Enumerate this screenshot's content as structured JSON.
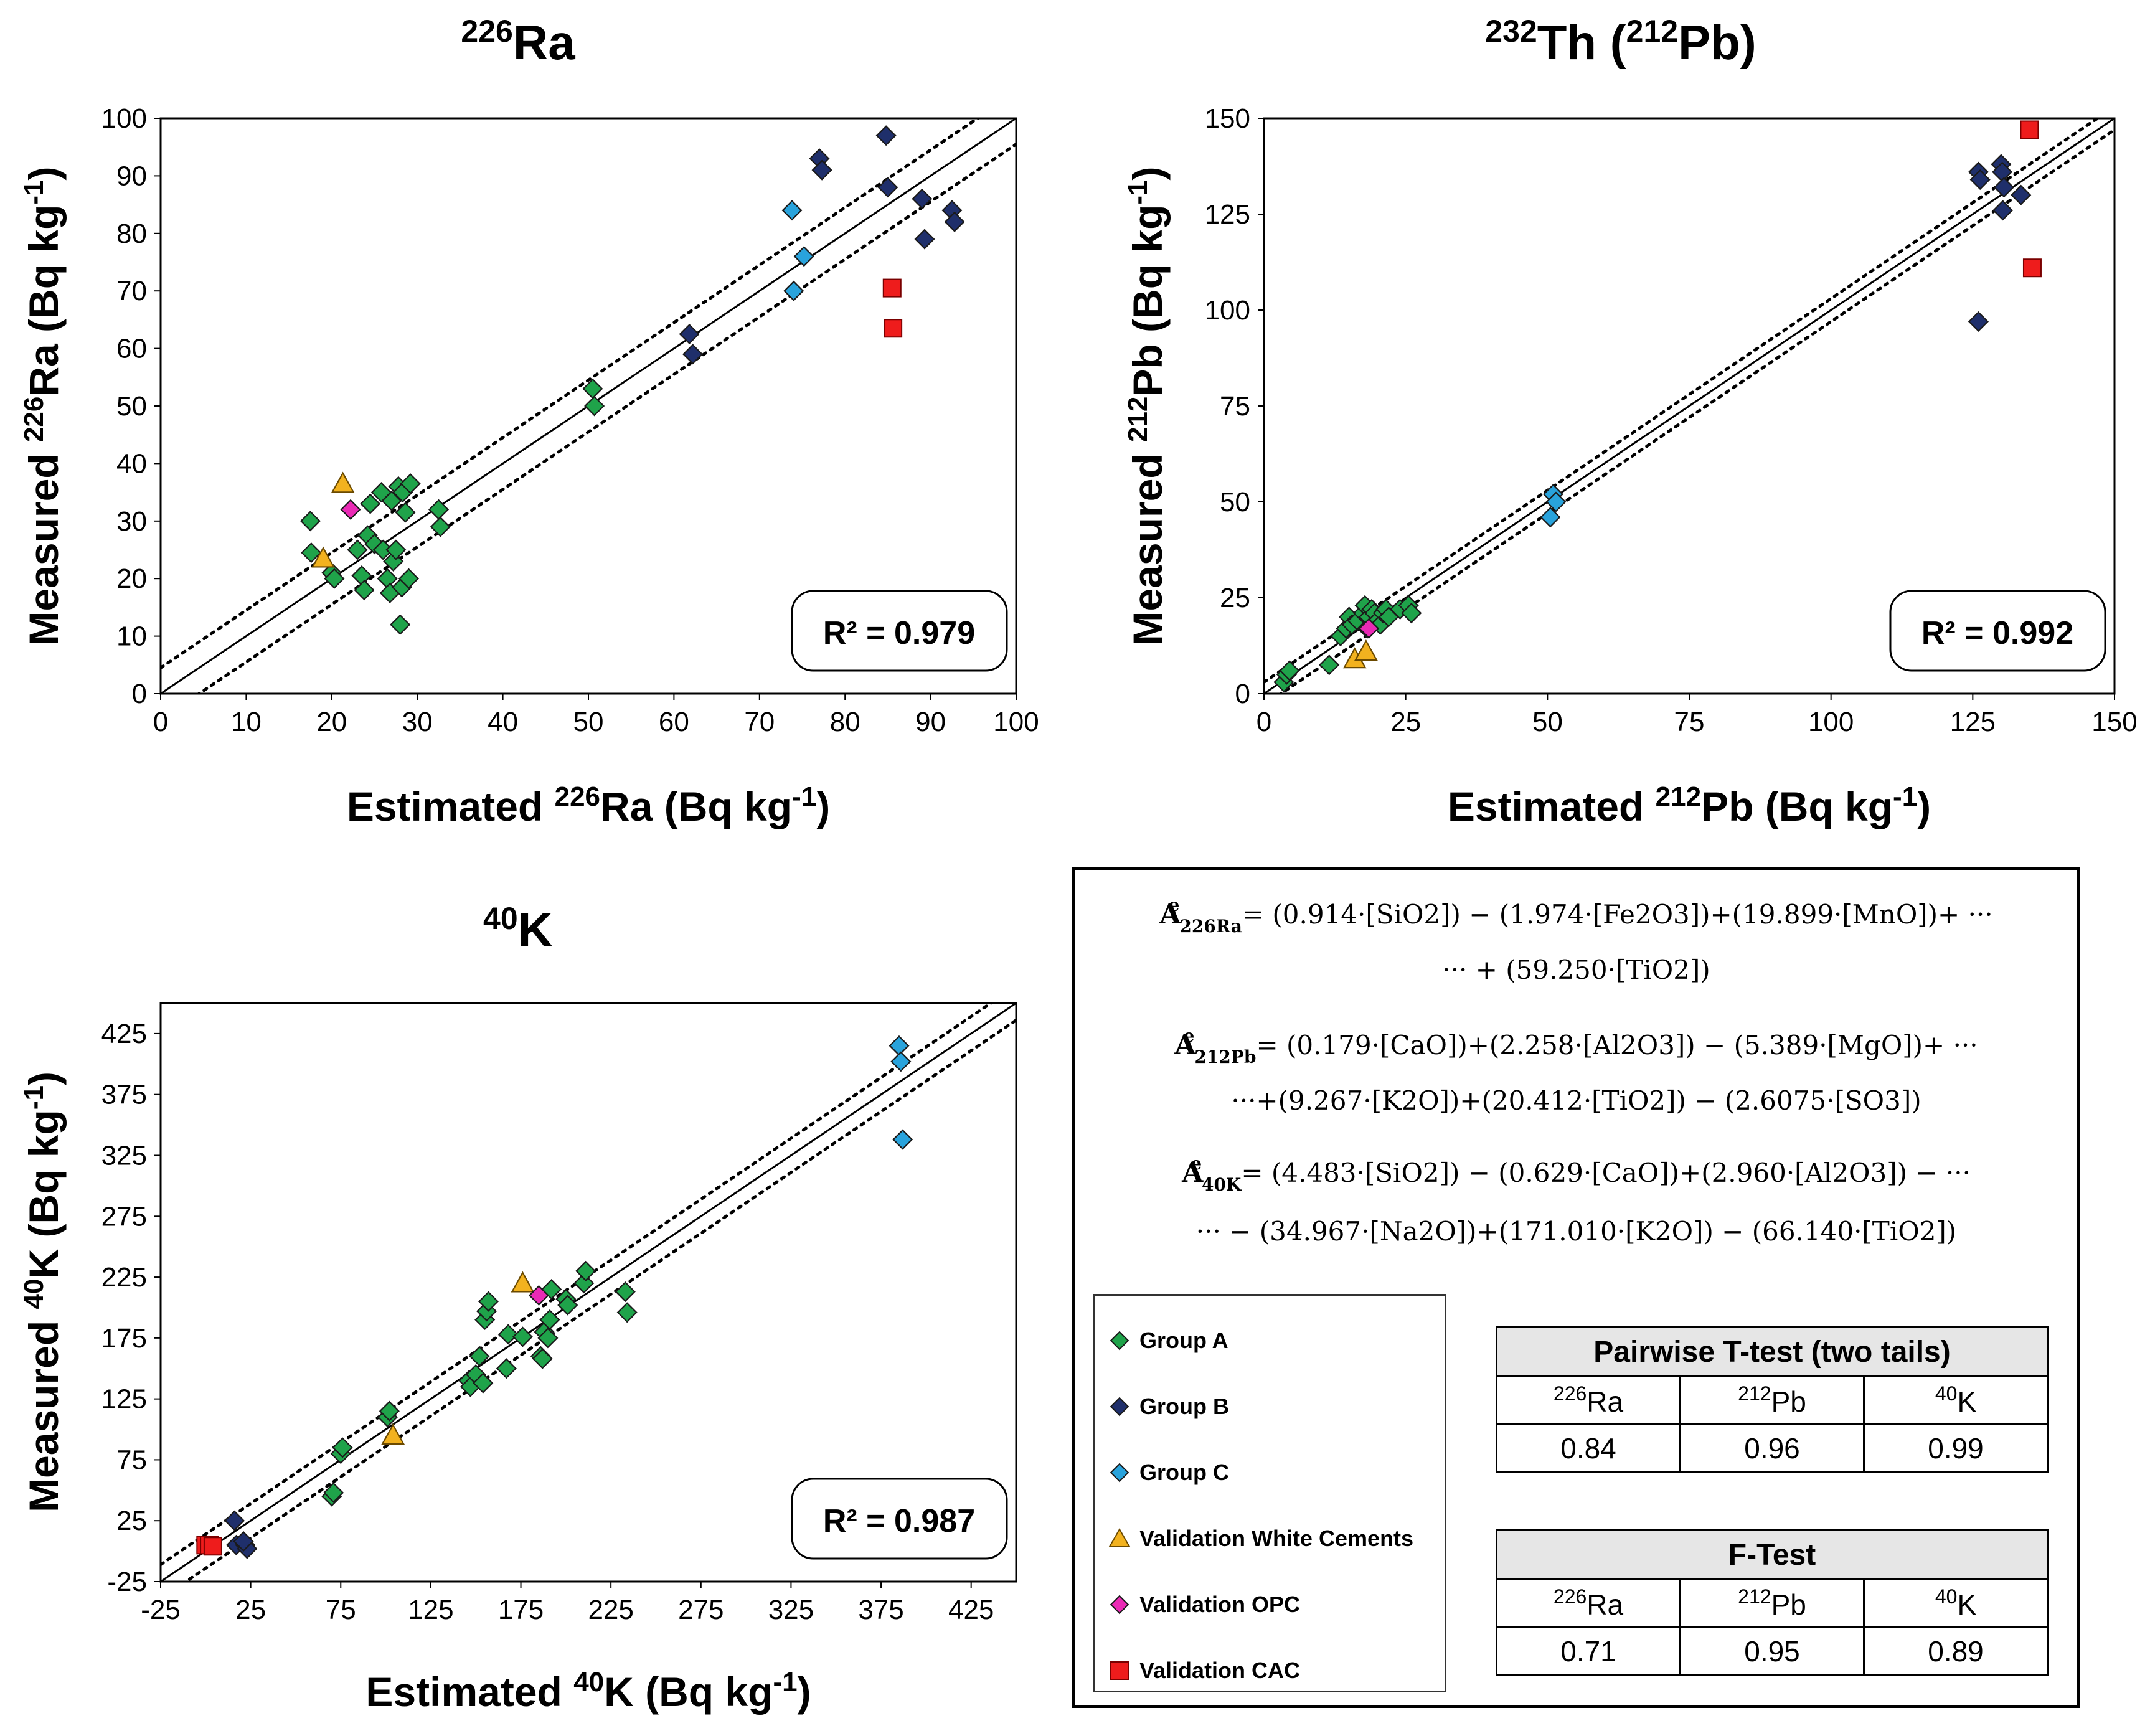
{
  "chart_data": [
    {
      "type": "scatter",
      "id": "ra",
      "title": "226Ra",
      "title_parts": {
        "sup": "226",
        "base": "Ra"
      },
      "xlabel": "Estimated 226Ra (Bq kg-1)",
      "ylabel": "Measured 226Ra (Bq kg-1)",
      "xlim": [
        0,
        100
      ],
      "ylim": [
        0,
        100
      ],
      "xticks": [
        0,
        10,
        20,
        30,
        40,
        50,
        60,
        70,
        80,
        90,
        100
      ],
      "yticks": [
        0,
        10,
        20,
        30,
        40,
        50,
        60,
        70,
        80,
        90,
        100
      ],
      "r2": "R² = 0.979",
      "band": 4.5,
      "series": [
        {
          "name": "Group A",
          "points": [
            [
              17.5,
              30
            ],
            [
              17.6,
              24.5
            ],
            [
              20,
              21
            ],
            [
              20.3,
              20
            ],
            [
              23,
              25
            ],
            [
              23.5,
              20.5
            ],
            [
              23.8,
              18
            ],
            [
              24.2,
              27.5
            ],
            [
              24.5,
              33
            ],
            [
              25,
              26
            ],
            [
              25.8,
              35
            ],
            [
              26,
              25
            ],
            [
              26.5,
              20
            ],
            [
              26.8,
              17.5
            ],
            [
              27,
              33.5
            ],
            [
              27.2,
              23
            ],
            [
              27.5,
              25
            ],
            [
              27.8,
              36
            ],
            [
              28,
              12
            ],
            [
              28.2,
              18.5
            ],
            [
              28.3,
              35
            ],
            [
              28.6,
              31.5
            ],
            [
              29,
              20
            ],
            [
              29.2,
              36.5
            ],
            [
              32.5,
              32
            ],
            [
              32.7,
              29
            ],
            [
              50.5,
              53
            ],
            [
              50.7,
              50
            ]
          ]
        },
        {
          "name": "Group B",
          "points": [
            [
              61.8,
              62.5
            ],
            [
              62.2,
              59
            ],
            [
              77,
              93
            ],
            [
              77.3,
              91
            ],
            [
              84.8,
              97
            ],
            [
              85,
              88
            ],
            [
              89,
              86
            ],
            [
              89.3,
              79
            ],
            [
              92.5,
              84
            ],
            [
              92.8,
              82
            ]
          ]
        },
        {
          "name": "Group C",
          "points": [
            [
              73.8,
              84
            ],
            [
              74,
              70
            ],
            [
              75.2,
              76
            ]
          ]
        },
        {
          "name": "Validation White Cements",
          "points": [
            [
              19,
              23.5
            ],
            [
              21.3,
              36.5
            ]
          ]
        },
        {
          "name": "Validation OPC",
          "points": [
            [
              22.2,
              32
            ]
          ]
        },
        {
          "name": "Validation CAC",
          "points": [
            [
              85.5,
              70.5
            ],
            [
              85.6,
              63.5
            ]
          ]
        }
      ]
    },
    {
      "type": "scatter",
      "id": "th",
      "title": "232Th (212Pb)",
      "title_parts": {
        "sup": "232",
        "base": "Th (",
        "sup2": "212",
        "base2": "Pb)"
      },
      "xlabel": "Estimated 212Pb (Bq kg-1)",
      "ylabel": "Measured 212Pb (Bq kg-1)",
      "xlim": [
        0,
        150
      ],
      "ylim": [
        0,
        150
      ],
      "xticks": [
        0,
        25,
        50,
        75,
        100,
        125,
        150
      ],
      "yticks": [
        0,
        25,
        50,
        75,
        100,
        125,
        150
      ],
      "r2": "R² = 0.992",
      "band": 3,
      "series": [
        {
          "name": "Group A",
          "points": [
            [
              3.5,
              3
            ],
            [
              4,
              5
            ],
            [
              4.5,
              6
            ],
            [
              11.5,
              7.5
            ],
            [
              13.5,
              15
            ],
            [
              14.5,
              17
            ],
            [
              15,
              20
            ],
            [
              15.5,
              18
            ],
            [
              16.5,
              19
            ],
            [
              17.5,
              21
            ],
            [
              17.8,
              23
            ],
            [
              18.2,
              17
            ],
            [
              18.5,
              20
            ],
            [
              19,
              22
            ],
            [
              19.5,
              21
            ],
            [
              20,
              19
            ],
            [
              20.5,
              18
            ],
            [
              21,
              21
            ],
            [
              21.5,
              22
            ],
            [
              22,
              20
            ],
            [
              24,
              22
            ],
            [
              25.5,
              23
            ],
            [
              26,
              21
            ]
          ]
        },
        {
          "name": "Group B",
          "points": [
            [
              126,
              136
            ],
            [
              126.3,
              134
            ],
            [
              126,
              97
            ],
            [
              130,
              138
            ],
            [
              130.2,
              136
            ],
            [
              130.5,
              132
            ],
            [
              130.3,
              126
            ],
            [
              133.5,
              130
            ]
          ]
        },
        {
          "name": "Group C",
          "points": [
            [
              50.5,
              46
            ],
            [
              51,
              52
            ],
            [
              51.5,
              50
            ]
          ]
        },
        {
          "name": "Validation White Cements",
          "points": [
            [
              16,
              9
            ],
            [
              18,
              11
            ]
          ]
        },
        {
          "name": "Validation OPC",
          "points": [
            [
              18.5,
              17
            ]
          ]
        },
        {
          "name": "Validation CAC",
          "points": [
            [
              135,
              147
            ],
            [
              135.5,
              111
            ]
          ]
        }
      ]
    },
    {
      "type": "scatter",
      "id": "k",
      "title": "40K",
      "title_parts": {
        "sup": "40",
        "base": "K"
      },
      "xlabel": "Estimated 40K (Bq kg-1)",
      "ylabel": "Measured 40K (Bq kg-1)",
      "xlim": [
        -25,
        450
      ],
      "ylim": [
        -25,
        450
      ],
      "xticks": [
        -25,
        25,
        75,
        125,
        175,
        225,
        275,
        325,
        375,
        425
      ],
      "yticks": [
        -25,
        25,
        75,
        125,
        175,
        225,
        275,
        325,
        375,
        425
      ],
      "r2": "R² = 0.987",
      "band": 14,
      "series": [
        {
          "name": "Group A",
          "points": [
            [
              70,
              45
            ],
            [
              71,
              48
            ],
            [
              75,
              80
            ],
            [
              76,
              85
            ],
            [
              101,
              110
            ],
            [
              102,
              115
            ],
            [
              146,
              140
            ],
            [
              147,
              135
            ],
            [
              150,
              145
            ],
            [
              152,
              160
            ],
            [
              154,
              138
            ],
            [
              155,
              190
            ],
            [
              156,
              197
            ],
            [
              157,
              205
            ],
            [
              167,
              150
            ],
            [
              168,
              178
            ],
            [
              176,
              176
            ],
            [
              186,
              160
            ],
            [
              187,
              158
            ],
            [
              188,
              180
            ],
            [
              190,
              175
            ],
            [
              191,
              190
            ],
            [
              192,
              215
            ],
            [
              200,
              207
            ],
            [
              201,
              202
            ],
            [
              210,
              220
            ],
            [
              211,
              230
            ],
            [
              233,
              213
            ],
            [
              234,
              196
            ]
          ]
        },
        {
          "name": "Group B",
          "points": [
            [
              16,
              25
            ],
            [
              17,
              5
            ],
            [
              22,
              5
            ],
            [
              23,
              2
            ],
            [
              21,
              8
            ]
          ]
        },
        {
          "name": "Group C",
          "points": [
            [
              385,
              415
            ],
            [
              386,
              402
            ],
            [
              387,
              338
            ]
          ]
        },
        {
          "name": "Validation White Cements",
          "points": [
            [
              104,
              95
            ],
            [
              176,
              220
            ]
          ]
        },
        {
          "name": "Validation OPC",
          "points": [
            [
              185,
              210
            ]
          ]
        },
        {
          "name": "Validation CAC",
          "points": [
            [
              0,
              5
            ],
            [
              2,
              5
            ],
            [
              4,
              4
            ]
          ]
        }
      ]
    }
  ],
  "series_colors": {
    "Group A": "#1fa34a",
    "Group B": "#1f2f6b",
    "Group C": "#29a3dc",
    "Validation White Cements": "#f2b21f",
    "Validation OPC": "#ea2ab5",
    "Validation CAC": "#ee1c1c"
  },
  "legend": [
    {
      "label": "Group A",
      "marker": "diamond"
    },
    {
      "label": "Group B",
      "marker": "diamond"
    },
    {
      "label": "Group C",
      "marker": "diamond"
    },
    {
      "label": "Validation White Cements",
      "marker": "triangle"
    },
    {
      "label": "Validation OPC",
      "marker": "diamond"
    },
    {
      "label": "Validation CAC",
      "marker": "square"
    }
  ],
  "equations": {
    "ra_line1": "= (0.914·[SiO2]) − (1.974·[Fe2O3])+(19.899·[MnO])+ ···",
    "ra_line2": "··· + (59.250·[TiO2])",
    "pb_line1": "= (0.179·[CaO])+(2.258·[Al2O3]) − (5.389·[MgO])+ ···",
    "pb_line2": "···+(9.267·[K2O])+(20.412·[TiO2]) − (2.6075·[SO3])",
    "k_line1": "= (4.483·[SiO2]) − (0.629·[CaO])+(2.960·[Al2O3]) − ···",
    "k_line2": "··· − (34.967·[Na2O])+(171.010·[K2O]) − (66.140·[TiO2])"
  },
  "ttest": {
    "title": "Pairwise T-test (two tails)",
    "headers": [
      "226Ra",
      "212Pb",
      "40K"
    ],
    "values": [
      "0.84",
      "0.96",
      "0.99"
    ]
  },
  "ftest": {
    "title": "F-Test",
    "headers": [
      "226Ra",
      "212Pb",
      "40K"
    ],
    "values": [
      "0.71",
      "0.95",
      "0.89"
    ]
  }
}
